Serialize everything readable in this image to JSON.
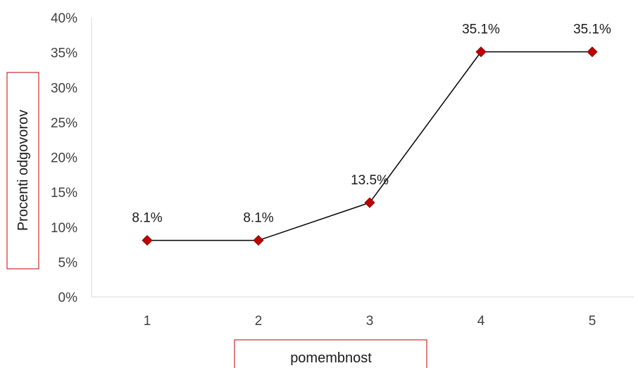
{
  "chart_data": {
    "type": "line",
    "categories": [
      "1",
      "2",
      "3",
      "4",
      "5"
    ],
    "values": [
      8.1,
      8.1,
      13.5,
      35.1,
      35.1
    ],
    "data_labels": [
      "8.1%",
      "8.1%",
      "13.5%",
      "35.1%",
      "35.1%"
    ],
    "y_ticks": [
      "0%",
      "5%",
      "10%",
      "15%",
      "20%",
      "25%",
      "30%",
      "35%",
      "40%"
    ],
    "ylim": [
      0,
      40
    ],
    "xlabel": "pomembnost",
    "ylabel": "Procenti odgovorov",
    "grid": false,
    "line_color": "#000000",
    "marker_color": "#c00000",
    "axis_title_border_color": "#c00000"
  }
}
